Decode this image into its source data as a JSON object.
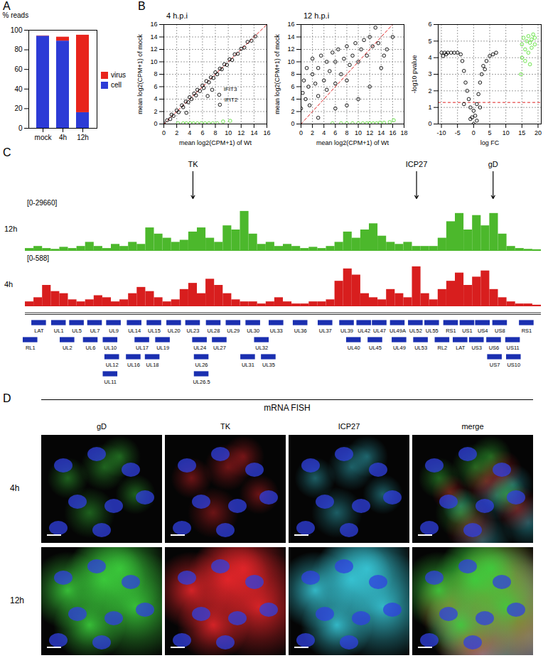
{
  "panel_labels": [
    "A",
    "B",
    "C",
    "D"
  ],
  "chart_data": [
    {
      "type": "bar",
      "stacked": true,
      "ylabel": "% reads",
      "categories": [
        "mock",
        "4h",
        "12h"
      ],
      "series": [
        {
          "name": "cell",
          "color": "#2c3bd6",
          "values": [
            94,
            89,
            16
          ]
        },
        {
          "name": "virus",
          "color": "#e8241c",
          "values": [
            0.3,
            4,
            79
          ]
        }
      ],
      "ylim": [
        0,
        100
      ],
      "yticks": [
        0,
        20,
        40,
        60,
        80,
        100
      ],
      "legend": "right"
    },
    {
      "type": "scatter",
      "title": "4 h.p.i",
      "xlabel": "mean log2(CPM+1) of Wt",
      "ylabel": "mean log2(CPM+1) of mock",
      "xlim": [
        0,
        16
      ],
      "xticks": [
        0,
        2,
        4,
        6,
        8,
        10,
        12,
        14,
        16
      ],
      "ylim": [
        0,
        16
      ],
      "yticks": [
        0,
        2,
        4,
        6,
        8,
        10,
        12,
        14,
        16
      ],
      "grid": true,
      "series": [
        {
          "color": "#000000",
          "marker": "open circle",
          "x": [
            0,
            0.5,
            1,
            1.2,
            1.5,
            2,
            2.3,
            2.8,
            3,
            3.4,
            3.8,
            4,
            4.3,
            4.7,
            5,
            5.2,
            5.6,
            6,
            6.2,
            6.6,
            7,
            7.3,
            7.7,
            8,
            8.3,
            8.7,
            9,
            9.4,
            9.8,
            10.2,
            10.6,
            11,
            11.5,
            12,
            12.5,
            13,
            13.6,
            14.2,
            8.6,
            8.7,
            7.5,
            6.8,
            3.5
          ],
          "y": [
            0.1,
            0.6,
            0.8,
            1.5,
            1.3,
            2.2,
            1.9,
            3.0,
            2.7,
            3.6,
            3.5,
            4.3,
            4.0,
            4.9,
            4.6,
            5.5,
            5.3,
            6.2,
            5.8,
            6.9,
            6.7,
            7.5,
            7.4,
            8.3,
            8.0,
            8.9,
            8.8,
            9.6,
            9.5,
            10.4,
            10.3,
            11.2,
            11.3,
            12.1,
            12.3,
            13.2,
            13.4,
            14.1,
            4.7,
            3.1,
            5.5,
            4.5,
            1.8
          ]
        },
        {
          "color": "#5de03a",
          "marker": "open circle",
          "x": [
            2.2,
            3,
            3.5,
            4.1,
            4.6,
            5.2,
            5.8,
            6.4,
            7,
            7.6,
            8.3,
            9.2,
            10.3
          ],
          "y": [
            0.1,
            0.1,
            0.1,
            0.1,
            0.1,
            0.1,
            0.1,
            0.1,
            0.1,
            0.1,
            0.1,
            0.4,
            0.5
          ]
        }
      ],
      "reference_line": {
        "x": [
          0,
          16
        ],
        "y": [
          0,
          16
        ],
        "color": "#e02020",
        "line_style": "dashed"
      },
      "annotations": [
        {
          "text": "IFIT3",
          "x": 9.3,
          "y": 5.6
        },
        {
          "text": "IFIT2",
          "x": 9.4,
          "y": 3.9
        }
      ]
    },
    {
      "type": "scatter",
      "title": "12 h.p.i",
      "xlabel": "mean log2(CPM+1) of Wt",
      "ylabel": "mean log2(CPM+1) of mock",
      "xlim": [
        0,
        18
      ],
      "xticks": [
        0,
        2,
        4,
        6,
        8,
        10,
        12,
        14,
        16,
        18
      ],
      "ylim": [
        0,
        16
      ],
      "yticks": [
        0,
        2,
        4,
        6,
        8,
        10,
        12,
        14,
        16
      ],
      "grid": true,
      "series": [
        {
          "color": "#000000",
          "marker": "open circle",
          "x": [
            0,
            0.3,
            0.5,
            0.8,
            1,
            1.3,
            1.5,
            2,
            2,
            2.5,
            3,
            3,
            3.5,
            4,
            4.5,
            4.5,
            5,
            5.5,
            6,
            6,
            6.5,
            7,
            7.5,
            8,
            8,
            8.5,
            9,
            9.5,
            10,
            10.5,
            11,
            11.5,
            12,
            12.5,
            13,
            13.5,
            10,
            8,
            12,
            14,
            15,
            16,
            14.5,
            3,
            6
          ],
          "y": [
            2.5,
            5,
            7,
            4,
            9,
            6,
            3,
            8,
            10.5,
            6.5,
            4.5,
            9,
            11,
            7,
            5.5,
            10,
            8.5,
            11.5,
            6.5,
            10,
            12,
            8,
            10.5,
            12.5,
            7,
            9.5,
            11,
            13,
            10,
            12,
            13.5,
            11,
            14,
            12.5,
            15.5,
            13,
            4,
            3,
            6,
            9,
            12,
            14,
            11,
            1,
            2.5
          ]
        },
        {
          "color": "#5de03a",
          "marker": "open circle",
          "x": [
            5.5,
            7,
            8,
            9,
            10,
            10.8,
            11.5,
            12,
            12.6,
            13.2,
            13.8,
            14.5,
            15.5,
            16.2
          ],
          "y": [
            0.1,
            0.1,
            0.1,
            0.1,
            0.1,
            0.1,
            0.1,
            0.1,
            0.1,
            0.1,
            0.2,
            0.2,
            0.3,
            0.6
          ]
        }
      ],
      "reference_line": {
        "x": [
          0,
          18
        ],
        "y": [
          0,
          18
        ],
        "color": "#e02020",
        "line_style": "dashed"
      }
    },
    {
      "type": "scatter",
      "xlabel": "log FC",
      "ylabel": "-log10 pvalue",
      "xlim": [
        -11,
        21
      ],
      "xticks": [
        -10,
        -5,
        0,
        5,
        10,
        15,
        20
      ],
      "ylim": [
        0,
        6
      ],
      "yticks": [
        0,
        1,
        2,
        3,
        4,
        5,
        6
      ],
      "grid": true,
      "series": [
        {
          "color": "#000000",
          "marker": "open circle",
          "x": [
            -10,
            -9,
            -8,
            -7,
            -6,
            -5,
            -4,
            -3.5,
            -3,
            -2.5,
            -2,
            -1.5,
            -1,
            -0.5,
            0,
            0.5,
            1,
            1.5,
            2,
            2.5,
            3,
            3.5,
            4,
            5,
            6,
            7,
            -9.5,
            -8.5,
            -3,
            2,
            -1,
            1,
            0
          ],
          "y": [
            4.3,
            4.3,
            4.3,
            4.3,
            4.3,
            4.3,
            4.2,
            3.8,
            3.2,
            2.5,
            2,
            1.5,
            1,
            0.4,
            0,
            0.5,
            1.2,
            1.8,
            2.5,
            3,
            3.5,
            3.3,
            3.8,
            4.1,
            4.2,
            4.3,
            4.1,
            4.2,
            1.2,
            1,
            0.3,
            0.2,
            0.8
          ]
        },
        {
          "color": "#5de03a",
          "marker": "open circle",
          "x": [
            15,
            15.5,
            16,
            16.5,
            17,
            17,
            17.5,
            18,
            18,
            18.5,
            19,
            19,
            16,
            15,
            14.7,
            17.5
          ],
          "y": [
            4.8,
            5.2,
            4.5,
            5,
            5.3,
            4.3,
            4.9,
            5.1,
            4.6,
            5.4,
            4.8,
            5.2,
            3.8,
            4,
            3,
            3.6
          ]
        }
      ],
      "reference_line": {
        "y": 1.3,
        "color": "#e02020",
        "line_style": "dashed"
      }
    }
  ],
  "genome_browser": {
    "annotations": [
      {
        "label": "TK",
        "x": 19.5
      },
      {
        "label": "ICP27",
        "x": 45.5
      },
      {
        "label": "gD",
        "x": 54.4
      }
    ],
    "tracks": [
      {
        "name": "12h",
        "range_label": "[0-29660]",
        "ylim": [
          0,
          29660
        ],
        "color": "#4cb82c",
        "values": [
          1480,
          2970,
          1480,
          890,
          2370,
          1480,
          2970,
          5930,
          2970,
          1480,
          4450,
          2970,
          5930,
          4450,
          16310,
          11860,
          8900,
          5930,
          7420,
          13350,
          16310,
          8900,
          5930,
          17800,
          14830,
          28180,
          11860,
          4450,
          5930,
          2970,
          4450,
          2970,
          1480,
          2370,
          1480,
          2970,
          5930,
          13350,
          8900,
          14830,
          19280,
          10380,
          5930,
          4450,
          5930,
          2970,
          2970,
          2970,
          8900,
          20760,
          26690,
          14830,
          25210,
          17800,
          26690,
          11860,
          2970,
          1480,
          890,
          590
        ]
      },
      {
        "name": "4h",
        "range_label": "[0-588]",
        "ylim": [
          0,
          588
        ],
        "color": "#d81e1e",
        "values": [
          59,
          118,
          294,
          206,
          176,
          88,
          59,
          88,
          147,
          118,
          59,
          88,
          176,
          265,
          206,
          118,
          59,
          88,
          235,
          323,
          176,
          382,
          294,
          176,
          88,
          59,
          59,
          29,
          59,
          118,
          59,
          29,
          29,
          59,
          59,
          88,
          353,
          529,
          441,
          176,
          118,
          88,
          235,
          176,
          118,
          559,
          176,
          88,
          235,
          353,
          470,
          294,
          412,
          500,
          235,
          118,
          59,
          29,
          29,
          12
        ]
      }
    ],
    "gene_color": "#1a2fb0",
    "genes": [
      {
        "label": "LAT",
        "x": 1.6,
        "row": 0
      },
      {
        "label": "UL1",
        "x": 3.9,
        "row": 0
      },
      {
        "label": "UL5",
        "x": 6.0,
        "row": 0
      },
      {
        "label": "UL7",
        "x": 8.1,
        "row": 0
      },
      {
        "label": "UL9",
        "x": 10.3,
        "row": 0
      },
      {
        "label": "UL14",
        "x": 12.7,
        "row": 0
      },
      {
        "label": "UL15",
        "x": 15.0,
        "row": 0
      },
      {
        "label": "UL20",
        "x": 17.3,
        "row": 0
      },
      {
        "label": "UL23",
        "x": 19.5,
        "row": 0
      },
      {
        "label": "UL28",
        "x": 21.9,
        "row": 0
      },
      {
        "label": "UL29",
        "x": 24.2,
        "row": 0
      },
      {
        "label": "UL30",
        "x": 26.5,
        "row": 0
      },
      {
        "label": "UL33",
        "x": 29.2,
        "row": 0
      },
      {
        "label": "UL36",
        "x": 32.0,
        "row": 0
      },
      {
        "label": "UL37",
        "x": 34.9,
        "row": 0
      },
      {
        "label": "UL39",
        "x": 37.4,
        "row": 0
      },
      {
        "label": "UL42",
        "x": 39.4,
        "row": 0
      },
      {
        "label": "UL47",
        "x": 41.2,
        "row": 0
      },
      {
        "label": "UL49A",
        "x": 43.3,
        "row": 0
      },
      {
        "label": "UL52",
        "x": 45.4,
        "row": 0
      },
      {
        "label": "UL55",
        "x": 47.3,
        "row": 0
      },
      {
        "label": "RS1",
        "x": 49.5,
        "row": 0
      },
      {
        "label": "US1",
        "x": 51.4,
        "row": 0
      },
      {
        "label": "US4",
        "x": 53.2,
        "row": 0
      },
      {
        "label": "US8",
        "x": 55.2,
        "row": 0
      },
      {
        "label": "RS1",
        "x": 58.3,
        "row": 0
      },
      {
        "label": "RL1",
        "x": 0.6,
        "row": 1
      },
      {
        "label": "UL2",
        "x": 4.9,
        "row": 1
      },
      {
        "label": "UL6",
        "x": 7.6,
        "row": 1
      },
      {
        "label": "UL10",
        "x": 9.9,
        "row": 1
      },
      {
        "label": "UL17",
        "x": 13.6,
        "row": 1
      },
      {
        "label": "UL19",
        "x": 16.0,
        "row": 1
      },
      {
        "label": "UL24",
        "x": 20.3,
        "row": 1
      },
      {
        "label": "UL27",
        "x": 22.6,
        "row": 1
      },
      {
        "label": "UL32",
        "x": 27.5,
        "row": 1
      },
      {
        "label": "UL40",
        "x": 38.2,
        "row": 1
      },
      {
        "label": "UL45",
        "x": 40.7,
        "row": 1
      },
      {
        "label": "UL49",
        "x": 43.5,
        "row": 1
      },
      {
        "label": "UL53",
        "x": 46.0,
        "row": 1
      },
      {
        "label": "RL2",
        "x": 48.5,
        "row": 1
      },
      {
        "label": "LAT",
        "x": 50.6,
        "row": 1
      },
      {
        "label": "US3",
        "x": 52.5,
        "row": 1
      },
      {
        "label": "US6",
        "x": 54.5,
        "row": 1
      },
      {
        "label": "US11",
        "x": 56.7,
        "row": 1
      },
      {
        "label": "UL12",
        "x": 10.1,
        "row": 2
      },
      {
        "label": "UL16",
        "x": 12.6,
        "row": 2
      },
      {
        "label": "UL18",
        "x": 14.8,
        "row": 2
      },
      {
        "label": "UL26",
        "x": 20.5,
        "row": 2
      },
      {
        "label": "UL31",
        "x": 25.9,
        "row": 2
      },
      {
        "label": "UL35",
        "x": 28.3,
        "row": 2
      },
      {
        "label": "US7",
        "x": 54.6,
        "row": 2
      },
      {
        "label": "US10",
        "x": 56.8,
        "row": 2
      },
      {
        "label": "UL11",
        "x": 9.9,
        "row": 3
      },
      {
        "label": "UL26.5",
        "x": 20.5,
        "row": 3
      }
    ]
  },
  "fish": {
    "title": "mRNA FISH",
    "columns": [
      {
        "name": "gD",
        "color": "#3ccf3c"
      },
      {
        "name": "TK",
        "color": "#e8262a"
      },
      {
        "name": "ICP27",
        "color": "#38c8d8"
      },
      {
        "name": "merge"
      }
    ],
    "rows": [
      "4h",
      "12h"
    ],
    "nucleus_color": "#3040e0"
  }
}
